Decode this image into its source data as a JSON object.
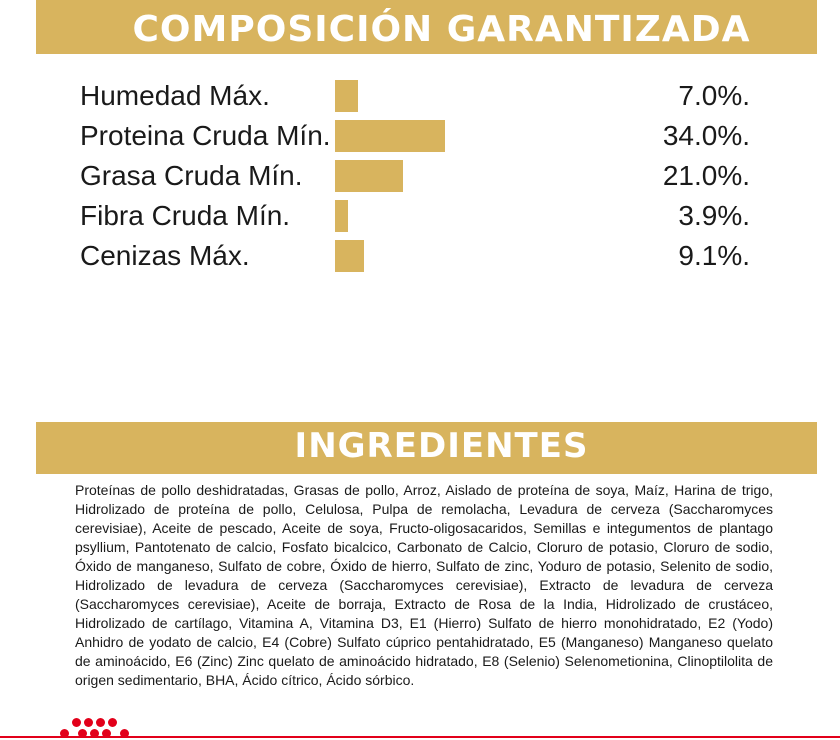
{
  "composition": {
    "title": "COMPOSICIÓN GARANTIZADA",
    "rows": [
      {
        "label": "Humedad Máx.",
        "value": "7.0%.",
        "amount": 7.0
      },
      {
        "label": "Proteina Cruda Mín.",
        "value": "34.0%.",
        "amount": 34.0
      },
      {
        "label": "Grasa Cruda Mín.",
        "value": "21.0%.",
        "amount": 21.0
      },
      {
        "label": "Fibra Cruda Mín.",
        "value": "3.9%.",
        "amount": 3.9
      },
      {
        "label": "Cenizas Máx.",
        "value": "9.1%.",
        "amount": 9.1
      }
    ],
    "bar_max": 34.0
  },
  "ingredients": {
    "title": "INGREDIENTES",
    "text": "Proteínas de pollo deshidratadas, Grasas  de pollo, Arroz, Aislado de proteína de soya, Maíz, Harina de trigo, Hidrolizado de proteína de pollo, Celulosa, Pulpa de remolacha, Levadura de cerveza (Saccharomyces cerevisiae), Aceite de pescado, Aceite de soya, Fructo-oligosacaridos, Semillas e integumentos de plantago psyllium, Pantotenato de calcio, Fosfato bicalcico, Carbonato de Calcio, Cloruro de potasio, Cloruro de sodio, Óxido de manganeso, Sulfato de cobre, Óxido de hierro, Sulfato de zinc, Yoduro de potasio, Selenito de sodio, Hidrolizado de levadura de cerveza (Saccharomyces cerevisiae), Extracto de levadura de cerveza (Saccharomyces cerevisiae), Aceite de borraja, Extracto de Rosa de la India, Hidrolizado de crustáceo, Hidrolizado de cartílago, Vitamina A, Vitamina D3, E1 (Hierro) Sulfato de hierro monohidratado, E2 (Yodo) Anhidro de yodato de calcio, E4 (Cobre) Sulfato cúprico pentahidratado, E5 (Manganeso) Manganeso quelato de aminoácido, E6 (Zinc) Zinc quelato de aminoácido hidratado, E8 (Selenio) Selenometionina, Clinoptilolita de origen sedimentario, BHA, Ácido cítrico, Ácido sórbico."
  },
  "colors": {
    "accent": "#d8b45e",
    "brand_red": "#e2001a",
    "text": "#1a1a1a"
  },
  "footer": {
    "logo_icon": "royal-canin-dots-icon"
  }
}
